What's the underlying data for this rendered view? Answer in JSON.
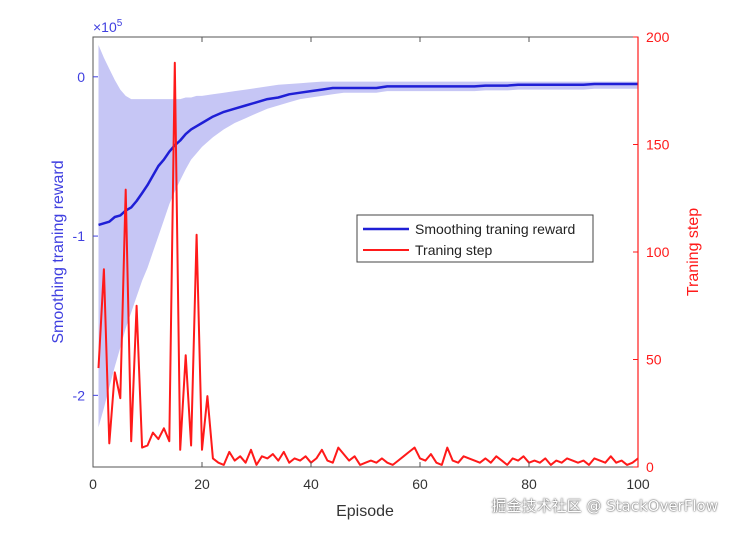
{
  "chart_data": {
    "type": "line",
    "xlabel": "Episode",
    "ylabel_left": "Smoothing traning reward",
    "ylabel_right": "Traning step",
    "left_axis": {
      "multiplier": "×10",
      "exponent": "5",
      "ticks": [
        {
          "value": 0,
          "label": "0"
        },
        {
          "value": -1,
          "label": "-1"
        },
        {
          "value": -2,
          "label": "-2"
        }
      ],
      "ylim": [
        -2.45,
        0.25
      ]
    },
    "right_axis": {
      "ticks": [
        {
          "value": 0,
          "label": "0"
        },
        {
          "value": 50,
          "label": "50"
        },
        {
          "value": 100,
          "label": "100"
        },
        {
          "value": 150,
          "label": "150"
        },
        {
          "value": 200,
          "label": "200"
        }
      ],
      "ylim": [
        0,
        200
      ]
    },
    "x_axis": {
      "ticks": [
        {
          "value": 0,
          "label": "0"
        },
        {
          "value": 20,
          "label": "20"
        },
        {
          "value": 40,
          "label": "40"
        },
        {
          "value": 60,
          "label": "60"
        },
        {
          "value": 80,
          "label": "80"
        },
        {
          "value": 100,
          "label": "100"
        }
      ],
      "xlim": [
        0,
        100
      ]
    },
    "legend": {
      "position": "center-right",
      "entries": [
        {
          "name": "Smoothing traning reward",
          "color": "#1f1fd6"
        },
        {
          "name": "Traning step",
          "color": "#ff1a1a"
        }
      ]
    },
    "colors": {
      "reward": "#1f1fd6",
      "band": "#c6c6f5",
      "step": "#ff1a1a",
      "left_axis": "#4040e0",
      "right_axis": "#ff1a1a"
    },
    "series": [
      {
        "name": "Smoothing traning reward",
        "axis": "left",
        "x": [
          1,
          2,
          3,
          4,
          5,
          6,
          7,
          8,
          9,
          10,
          11,
          12,
          13,
          14,
          15,
          16,
          17,
          18,
          19,
          20,
          22,
          24,
          26,
          28,
          30,
          32,
          34,
          36,
          38,
          40,
          42,
          44,
          46,
          48,
          50,
          52,
          54,
          56,
          58,
          60,
          62,
          64,
          66,
          68,
          70,
          72,
          74,
          76,
          78,
          80,
          82,
          84,
          86,
          88,
          90,
          92,
          94,
          96,
          98,
          100
        ],
        "y": [
          -0.93,
          -0.92,
          -0.91,
          -0.88,
          -0.87,
          -0.84,
          -0.82,
          -0.78,
          -0.73,
          -0.68,
          -0.62,
          -0.56,
          -0.52,
          -0.47,
          -0.43,
          -0.4,
          -0.36,
          -0.33,
          -0.31,
          -0.29,
          -0.25,
          -0.22,
          -0.2,
          -0.18,
          -0.16,
          -0.14,
          -0.13,
          -0.11,
          -0.1,
          -0.09,
          -0.08,
          -0.07,
          -0.07,
          -0.07,
          -0.07,
          -0.07,
          -0.06,
          -0.06,
          -0.06,
          -0.06,
          -0.06,
          -0.06,
          -0.06,
          -0.06,
          -0.06,
          -0.055,
          -0.055,
          -0.055,
          -0.05,
          -0.05,
          -0.05,
          -0.05,
          -0.05,
          -0.05,
          -0.05,
          -0.045,
          -0.045,
          -0.045,
          -0.045,
          -0.045
        ],
        "upper": [
          0.2,
          0.12,
          0.05,
          -0.02,
          -0.08,
          -0.12,
          -0.14,
          -0.14,
          -0.14,
          -0.14,
          -0.14,
          -0.14,
          -0.14,
          -0.14,
          -0.14,
          -0.14,
          -0.13,
          -0.13,
          -0.12,
          -0.12,
          -0.11,
          -0.1,
          -0.09,
          -0.08,
          -0.07,
          -0.06,
          -0.05,
          -0.045,
          -0.04,
          -0.035,
          -0.03,
          -0.03,
          -0.03,
          -0.03,
          -0.03,
          -0.03,
          -0.03,
          -0.03,
          -0.03,
          -0.03,
          -0.03,
          -0.03,
          -0.03,
          -0.03,
          -0.03,
          -0.03,
          -0.03,
          -0.03,
          -0.03,
          -0.03,
          -0.03,
          -0.03,
          -0.03,
          -0.03,
          -0.03,
          -0.03,
          -0.03,
          -0.03,
          -0.03,
          -0.03
        ],
        "lower": [
          -2.2,
          -2.08,
          -1.95,
          -1.82,
          -1.7,
          -1.58,
          -1.48,
          -1.38,
          -1.28,
          -1.2,
          -1.1,
          -1.0,
          -0.9,
          -0.8,
          -0.72,
          -0.65,
          -0.58,
          -0.52,
          -0.48,
          -0.44,
          -0.38,
          -0.33,
          -0.29,
          -0.26,
          -0.23,
          -0.2,
          -0.18,
          -0.16,
          -0.14,
          -0.13,
          -0.12,
          -0.11,
          -0.1,
          -0.1,
          -0.1,
          -0.1,
          -0.09,
          -0.09,
          -0.09,
          -0.09,
          -0.09,
          -0.09,
          -0.09,
          -0.09,
          -0.09,
          -0.085,
          -0.085,
          -0.085,
          -0.08,
          -0.08,
          -0.08,
          -0.08,
          -0.08,
          -0.08,
          -0.08,
          -0.075,
          -0.075,
          -0.075,
          -0.075,
          -0.075
        ]
      },
      {
        "name": "Traning step",
        "axis": "right",
        "x": [
          1,
          2,
          3,
          4,
          5,
          6,
          7,
          8,
          9,
          10,
          11,
          12,
          13,
          14,
          15,
          16,
          17,
          18,
          19,
          20,
          21,
          22,
          23,
          24,
          25,
          26,
          27,
          28,
          29,
          30,
          31,
          32,
          33,
          34,
          35,
          36,
          37,
          38,
          39,
          40,
          41,
          42,
          43,
          44,
          45,
          46,
          47,
          48,
          49,
          50,
          51,
          52,
          53,
          54,
          55,
          56,
          57,
          58,
          59,
          60,
          61,
          62,
          63,
          64,
          65,
          66,
          67,
          68,
          69,
          70,
          71,
          72,
          73,
          74,
          75,
          76,
          77,
          78,
          79,
          80,
          81,
          82,
          83,
          84,
          85,
          86,
          87,
          88,
          89,
          90,
          91,
          92,
          93,
          94,
          95,
          96,
          97,
          98,
          99,
          100
        ],
        "y": [
          46,
          92,
          11,
          44,
          32,
          129,
          12,
          75,
          9,
          10,
          16,
          13,
          18,
          12,
          188,
          8,
          52,
          10,
          108,
          8,
          33,
          4,
          2,
          1,
          7,
          3,
          5,
          2,
          8,
          1,
          5,
          4,
          6,
          3,
          7,
          2,
          4,
          3,
          5,
          2,
          4,
          8,
          3,
          2,
          9,
          6,
          3,
          5,
          1,
          2,
          3,
          2,
          4,
          2,
          1,
          3,
          5,
          7,
          9,
          4,
          3,
          6,
          2,
          1,
          9,
          3,
          2,
          5,
          4,
          3,
          2,
          4,
          2,
          5,
          3,
          1,
          4,
          3,
          5,
          2,
          3,
          2,
          4,
          1,
          3,
          2,
          4,
          3,
          2,
          3,
          1,
          4,
          3,
          2,
          5,
          2,
          3,
          1,
          2,
          4
        ]
      }
    ]
  },
  "watermark": "掘金技术社区 @ StackOverFlow"
}
